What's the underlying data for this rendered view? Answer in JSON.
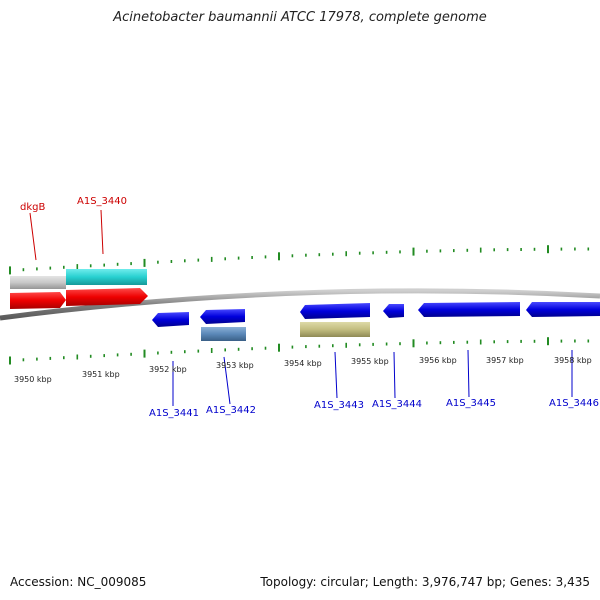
{
  "title": "Acinetobacter baumannii ATCC 17978, complete genome",
  "footer": {
    "accession": "Accession: NC_009085",
    "summary": "Topology: circular; Length: 3,976,747 bp; Genes: 3,435"
  },
  "scale_labels": [
    "3950 kbp",
    "3951 kbp",
    "3952 kbp",
    "3953 kbp",
    "3954 kbp",
    "3955 kbp",
    "3956 kbp",
    "3957 kbp",
    "3958 kbp"
  ],
  "gene_labels": {
    "forward": [
      "dkgB",
      "A1S_3440"
    ],
    "reverse": [
      "A1S_3441",
      "A1S_3442",
      "A1S_3443",
      "A1S_3444",
      "A1S_3445",
      "A1S_3446"
    ]
  },
  "colors": {
    "forward_gene": "#ee0000",
    "reverse_gene": "#0000dd",
    "forward_label": "#cc0000",
    "reverse_label": "#0000cc",
    "tick": "#228b22",
    "backbone": "#888888",
    "feature_gray": "#c8c8c8",
    "feature_cyan": "#27d0d0",
    "feature_steelblue": "#5b88b8",
    "feature_khaki": "#c2bd80"
  }
}
